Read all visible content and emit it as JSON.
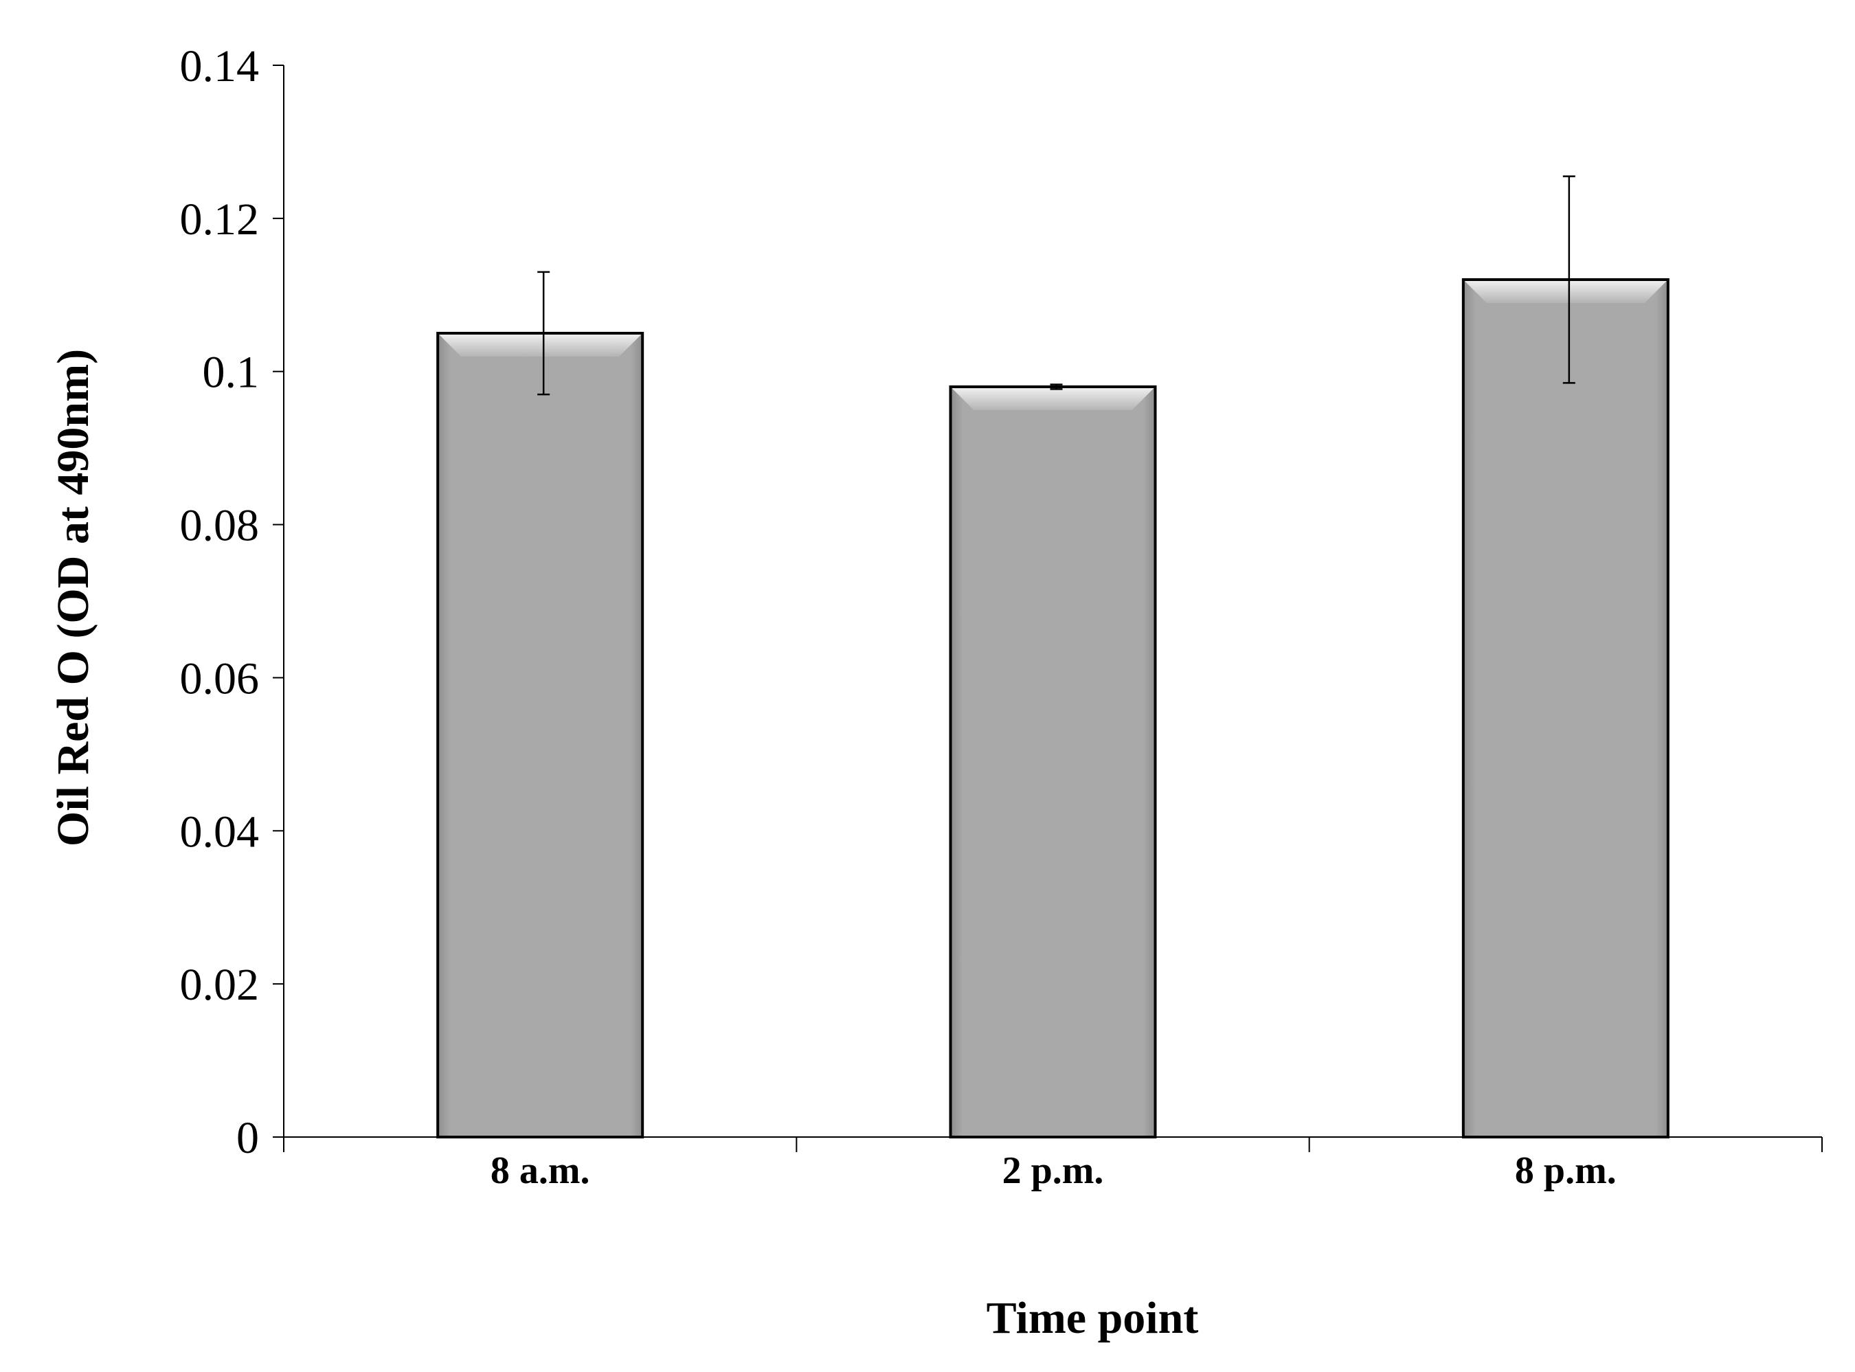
{
  "chart_data": {
    "type": "bar",
    "title": "",
    "xlabel": "Time point",
    "ylabel": "Oil Red O (OD at 490nm)",
    "categories": [
      "8 a.m.",
      "2 p.m.",
      "8 p.m."
    ],
    "values": [
      0.105,
      0.098,
      0.112
    ],
    "error_bars": [
      0.008,
      0.0003,
      0.0135
    ],
    "ylim": [
      0,
      0.14
    ],
    "yticks": [
      "0",
      "0.02",
      "0.04",
      "0.06",
      "0.08",
      "0.1",
      "0.12",
      "0.14"
    ],
    "grid": false,
    "legend": "none",
    "colors": {
      "bar_fill": "#a8a8a8",
      "bar_edge": "#000000",
      "axis": "#000000"
    }
  }
}
